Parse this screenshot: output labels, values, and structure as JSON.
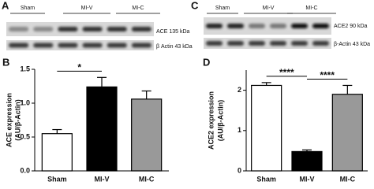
{
  "blots": [
    {
      "panel": "A",
      "groups": [
        "Sham",
        "MI-V",
        "MI-C"
      ],
      "bands": [
        "ACE 135 kDa",
        "β Actin 43 kDa"
      ]
    },
    {
      "panel": "C",
      "groups": [
        "Sham",
        "MI-V",
        "MI-C"
      ],
      "bands": [
        "ACE2 90 kDa",
        "β-Actin 43 kDa"
      ]
    }
  ],
  "chart_data": [
    {
      "type": "bar",
      "panel": "B",
      "ylabel": [
        "ACE expression",
        "(AU/β-Actin)"
      ],
      "categories": [
        "Sham",
        "MI-V",
        "MI-C"
      ],
      "values": [
        0.55,
        1.24,
        1.06
      ],
      "errors": [
        0.06,
        0.14,
        0.12
      ],
      "colors": [
        "#ffffff",
        "#000000",
        "#999999"
      ],
      "ylim": [
        0,
        1.5
      ],
      "yticks": [
        {
          "value": 0,
          "label": "0.0"
        },
        {
          "value": 0.5,
          "label": "0.5"
        },
        {
          "value": 1,
          "label": "1.0"
        },
        {
          "value": 1.5,
          "label": "1.5"
        }
      ],
      "significance": [
        {
          "between": [
            "Sham",
            "MI-V"
          ],
          "label": "*"
        }
      ]
    },
    {
      "type": "bar",
      "panel": "D",
      "ylabel": [
        "ACE2 expression",
        "(AU/β-Actin)"
      ],
      "categories": [
        "Sham",
        "MI-V",
        "MI-C"
      ],
      "values": [
        2.12,
        0.48,
        1.9
      ],
      "errors": [
        0.07,
        0.04,
        0.22
      ],
      "colors": [
        "#ffffff",
        "#000000",
        "#999999"
      ],
      "ylim": [
        0,
        2.5
      ],
      "yticks": [
        0,
        1,
        2
      ],
      "significance": [
        {
          "between": [
            "Sham",
            "MI-V"
          ],
          "label": "****"
        },
        {
          "between": [
            "MI-V",
            "MI-C"
          ],
          "label": "****"
        }
      ]
    }
  ]
}
